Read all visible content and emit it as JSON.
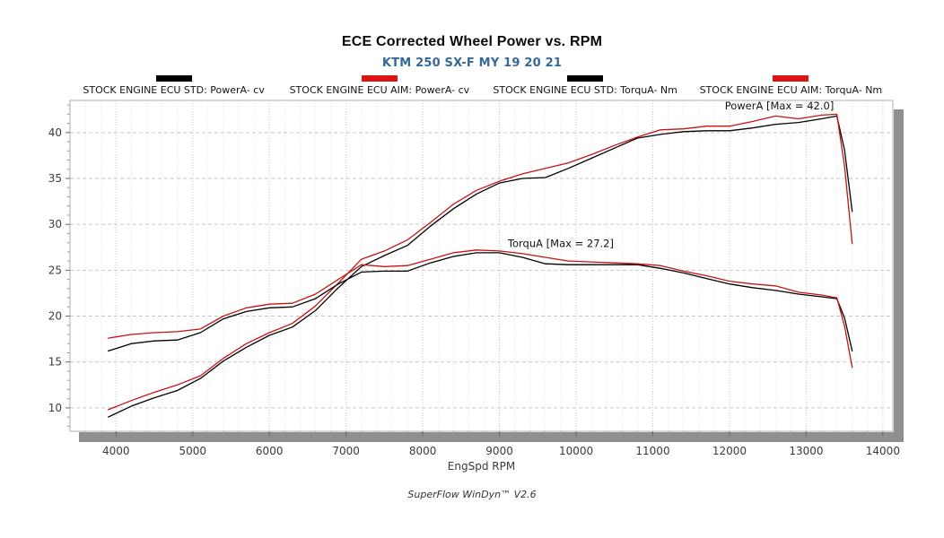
{
  "header": {
    "title": "ECE Corrected Wheel Power vs. RPM",
    "subtitle": "KTM 250 SX-F MY 19 20 21",
    "subtitle_color": "#35689a"
  },
  "legend": {
    "items": [
      {
        "label": "STOCK ENGINE ECU STD: PowerA- cv",
        "color": "#000000"
      },
      {
        "label": "STOCK ENGINE ECU AIM: PowerA- cv",
        "color": "#dc1414"
      },
      {
        "label": "STOCK ENGINE ECU STD: TorquA- Nm",
        "color": "#000000"
      },
      {
        "label": "STOCK ENGINE ECU AIM: TorquA- Nm",
        "color": "#dc1414"
      }
    ]
  },
  "chart_data": {
    "type": "line",
    "title": "ECE Corrected Wheel Power vs. RPM",
    "subtitle": "KTM 250 SX-F MY 19 20 21",
    "xlabel": "EngSpd RPM",
    "ylabel": "",
    "grid": true,
    "legend_position": "top",
    "x_axis": {
      "label": "EngSpd RPM",
      "ticks": [
        4000,
        5000,
        6000,
        7000,
        8000,
        9000,
        10000,
        11000,
        12000,
        13000,
        14000
      ],
      "minor_step": 200,
      "range": [
        3400,
        14130
      ]
    },
    "y_axis": {
      "ticks": [
        10,
        15,
        20,
        25,
        30,
        35,
        40
      ],
      "minor_step": 1,
      "range": [
        7.45,
        43.5
      ]
    },
    "rpm": [
      3900,
      4200,
      4500,
      4800,
      5100,
      5400,
      5700,
      6000,
      6300,
      6600,
      6900,
      7200,
      7500,
      7800,
      8100,
      8400,
      8700,
      9000,
      9300,
      9600,
      9900,
      10200,
      10500,
      10800,
      11100,
      11400,
      11700,
      12000,
      12300,
      12600,
      12900,
      13200,
      13400,
      13500,
      13600
    ],
    "series": [
      {
        "name": "STOCK ENGINE ECU STD: PowerA- cv",
        "unit": "cv",
        "color": "#000000",
        "values": [
          9.0,
          10.2,
          11.1,
          11.9,
          13.2,
          15.1,
          16.6,
          17.9,
          18.8,
          20.6,
          23.1,
          25.4,
          26.6,
          27.7,
          29.8,
          31.7,
          33.3,
          34.5,
          35.0,
          35.1,
          36.1,
          37.2,
          38.3,
          39.4,
          39.8,
          40.1,
          40.2,
          40.2,
          40.5,
          40.9,
          41.1,
          41.5,
          41.8,
          38.1,
          31.4
        ]
      },
      {
        "name": "STOCK ENGINE ECU AIM: PowerA- cv",
        "unit": "cv",
        "color": "#c41414",
        "values": [
          9.8,
          10.8,
          11.7,
          12.5,
          13.5,
          15.4,
          17.0,
          18.2,
          19.2,
          21.1,
          23.6,
          26.2,
          27.1,
          28.3,
          30.2,
          32.2,
          33.7,
          34.7,
          35.5,
          36.1,
          36.7,
          37.6,
          38.6,
          39.5,
          40.3,
          40.4,
          40.7,
          40.7,
          41.2,
          41.8,
          41.5,
          41.9,
          42.0,
          36.3,
          27.9
        ]
      },
      {
        "name": "STOCK ENGINE ECU STD: TorquA- Nm",
        "unit": "Nm",
        "color": "#000000",
        "values": [
          16.2,
          17.0,
          17.3,
          17.4,
          18.2,
          19.7,
          20.5,
          20.9,
          21.0,
          21.9,
          23.5,
          24.8,
          24.9,
          24.9,
          25.8,
          26.5,
          26.9,
          26.9,
          26.4,
          25.7,
          25.6,
          25.6,
          25.6,
          25.6,
          25.2,
          24.7,
          24.1,
          23.5,
          23.1,
          22.8,
          22.4,
          22.1,
          21.9,
          19.8,
          16.2
        ]
      },
      {
        "name": "STOCK ENGINE ECU AIM: TorquA- Nm",
        "unit": "Nm",
        "color": "#c41414",
        "values": [
          17.6,
          18.0,
          18.2,
          18.3,
          18.6,
          20.0,
          20.9,
          21.3,
          21.4,
          22.4,
          24.0,
          25.6,
          25.4,
          25.5,
          26.2,
          26.9,
          27.2,
          27.1,
          26.8,
          26.4,
          26.0,
          25.9,
          25.8,
          25.7,
          25.5,
          24.9,
          24.4,
          23.8,
          23.5,
          23.3,
          22.6,
          22.3,
          22.0,
          18.9,
          14.4
        ]
      }
    ],
    "annotations": [
      {
        "text": "PowerA [Max = 42.0]",
        "rpm": 12650,
        "value": 42.9
      },
      {
        "text": "TorquA [Max = 27.2]",
        "rpm": 9800,
        "value": 27.9
      }
    ],
    "max_values": {
      "PowerA": 42.0,
      "TorquA": 27.2
    },
    "colors": {
      "grid_minor": "#e3e3e3",
      "grid_major": "#c6c6c6",
      "border": "#adadad",
      "shadow": "#8f8f8f",
      "tick_text": "#3a3a3a",
      "annotation_text": "#141414"
    }
  },
  "footer": {
    "version_text": "SuperFlow WinDyn™ V2.6"
  }
}
